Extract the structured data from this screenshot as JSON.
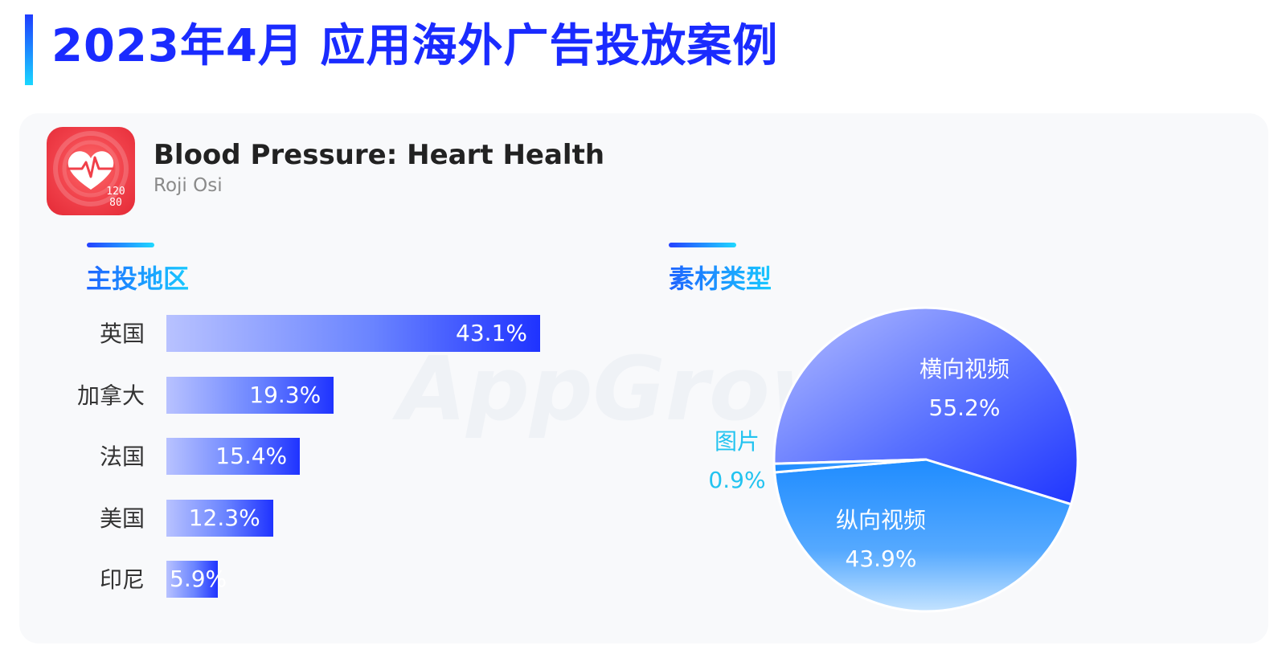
{
  "header": {
    "title": "2023年4月 应用海外广告投放案例"
  },
  "app": {
    "name": "Blood Pressure: Heart Health",
    "developer": "Roji Osi",
    "icon": "heart-pulse-icon",
    "icon_text_1": "120",
    "icon_text_2": "80"
  },
  "watermark": "AppGrowing",
  "sections": {
    "regions_title": "主投地区",
    "creative_title": "素材类型"
  },
  "colors": {
    "title_blue": "#1a2bff",
    "bar_start": "#b8c2ff",
    "bar_end": "#1f33ff",
    "pie_dark_blue": "#1f35ff",
    "pie_light_blue": "#2a95ff",
    "outside_label": "#22c3f0"
  },
  "chart_data": [
    {
      "type": "bar",
      "orientation": "horizontal",
      "title": "主投地区",
      "categories": [
        "英国",
        "加拿大",
        "法国",
        "美国",
        "印尼"
      ],
      "values": [
        43.1,
        19.3,
        15.4,
        12.3,
        5.9
      ],
      "value_labels": [
        "43.1%",
        "19.3%",
        "15.4%",
        "12.3%",
        "5.9%"
      ],
      "unit": "%"
    },
    {
      "type": "pie",
      "title": "素材类型",
      "slices": [
        {
          "name": "横向视频",
          "value": 55.2,
          "label": "55.2%"
        },
        {
          "name": "纵向视频",
          "value": 43.9,
          "label": "43.9%"
        },
        {
          "name": "图片",
          "value": 0.9,
          "label": "0.9%"
        }
      ],
      "unit": "%"
    }
  ]
}
